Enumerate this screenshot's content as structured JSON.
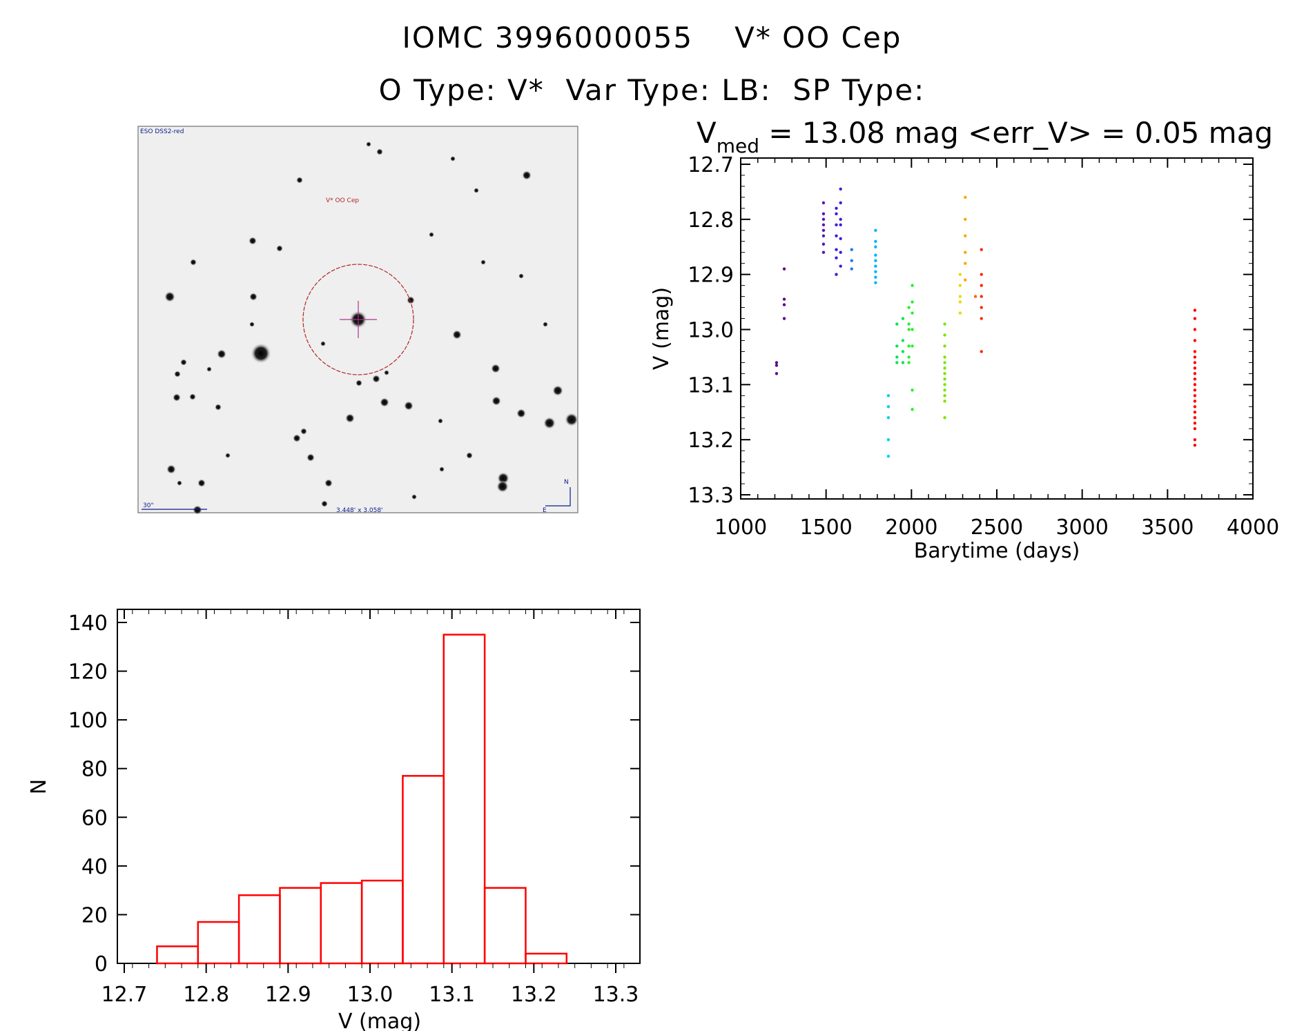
{
  "header": {
    "line1_id": "IOMC 3996000055",
    "line1_name": "V* OO Cep",
    "line2": "O Type: V*  Var Type: LB:  SP Type:"
  },
  "finder": {
    "survey_label": "ESO DSS2-red",
    "target_label": "V* OO Cep",
    "scale_label": "30\"",
    "fov_label": "3.448' x 3.058'",
    "north_label": "N",
    "east_label": "E"
  },
  "colors": {
    "histogram": "#ff0000",
    "target_circle": "#b22222"
  },
  "chart_data": [
    {
      "type": "scatter",
      "title_prefix": "V",
      "title_subscript": "med",
      "title_rest": " = 13.08 mag <err_V> = 0.05 mag",
      "xlabel": "Barytime (days)",
      "ylabel": "V (mag)",
      "xlim": [
        1000,
        4000
      ],
      "ylim": [
        13.3,
        12.7
      ],
      "xticks": [
        1000,
        1500,
        2000,
        2500,
        3000,
        3500,
        4000
      ],
      "yticks": [
        12.7,
        12.8,
        12.9,
        13.0,
        13.1,
        13.2,
        13.3
      ],
      "ytick_labels": [
        "12.7",
        "12.8",
        "12.9",
        "13.0",
        "13.1",
        "13.2",
        "13.3"
      ],
      "groups": [
        {
          "x": 1210,
          "color": "#5a0a8c",
          "values": [
            13.06,
            13.065,
            13.08
          ]
        },
        {
          "x": 1255,
          "color": "#5a0a8c",
          "values": [
            12.89,
            12.945,
            12.955,
            12.98
          ]
        },
        {
          "x": 1485,
          "color": "#5a14b4",
          "values": [
            12.77,
            12.79,
            12.8,
            12.81,
            12.82,
            12.83,
            12.845,
            12.86
          ]
        },
        {
          "x": 1560,
          "color": "#3c1edc",
          "values": [
            12.78,
            12.79,
            12.81,
            12.83,
            12.855,
            12.87,
            12.9
          ]
        },
        {
          "x": 1585,
          "color": "#3c1edc",
          "values": [
            12.745,
            12.77,
            12.8,
            12.81,
            12.835,
            12.86,
            12.885
          ]
        },
        {
          "x": 1650,
          "color": "#1e78f0",
          "values": [
            12.855,
            12.875,
            12.89
          ]
        },
        {
          "x": 1790,
          "color": "#00b4ff",
          "values": [
            12.82,
            12.84,
            12.85,
            12.865,
            12.875,
            12.885,
            12.895,
            12.905,
            12.915
          ]
        },
        {
          "x": 1865,
          "color": "#00d2e6",
          "values": [
            13.12,
            13.14,
            13.16,
            13.2,
            13.23
          ]
        },
        {
          "x": 1915,
          "color": "#00e650",
          "values": [
            12.99,
            13.03,
            13.05,
            13.06
          ]
        },
        {
          "x": 1950,
          "color": "#00e650",
          "values": [
            12.98,
            13.02,
            13.04,
            13.06
          ]
        },
        {
          "x": 1985,
          "color": "#28f028",
          "values": [
            12.96,
            12.99,
            13.0,
            13.03,
            13.05,
            13.06
          ]
        },
        {
          "x": 2005,
          "color": "#28f028",
          "values": [
            12.92,
            12.95,
            12.97,
            13.0,
            13.03,
            13.11,
            13.145
          ]
        },
        {
          "x": 2195,
          "color": "#78e600",
          "values": [
            12.99,
            13.01,
            13.03,
            13.05,
            13.06,
            13.07,
            13.08,
            13.09,
            13.1,
            13.11,
            13.12,
            13.13,
            13.16
          ]
        },
        {
          "x": 2285,
          "color": "#e6dc00",
          "values": [
            12.9,
            12.92,
            12.94,
            12.95,
            12.97
          ]
        },
        {
          "x": 2315,
          "color": "#ffa500",
          "values": [
            12.76,
            12.8,
            12.83,
            12.86,
            12.88,
            12.91
          ]
        },
        {
          "x": 2375,
          "color": "#ff6400",
          "values": [
            12.94
          ]
        },
        {
          "x": 2410,
          "color": "#ff2a00",
          "values": [
            12.855,
            12.9,
            12.92,
            12.94,
            12.96,
            12.98,
            13.04
          ]
        },
        {
          "x": 3660,
          "color": "#ff0000",
          "values": [
            12.965,
            12.98,
            13.0,
            13.02,
            13.04,
            13.05,
            13.06,
            13.07,
            13.08,
            13.09,
            13.1,
            13.11,
            13.12,
            13.13,
            13.14,
            13.15,
            13.16,
            13.17,
            13.18,
            13.2,
            13.21
          ]
        }
      ]
    },
    {
      "type": "histogram",
      "xlabel": "V (mag)",
      "ylabel": "N",
      "xlim": [
        12.69,
        13.33
      ],
      "ylim": [
        0,
        140
      ],
      "xticks": [
        12.7,
        12.8,
        12.9,
        13.0,
        13.1,
        13.2,
        13.3
      ],
      "xtick_labels": [
        "12.7",
        "12.8",
        "12.9",
        "13.0",
        "13.1",
        "13.2",
        "13.3"
      ],
      "yticks": [
        0,
        20,
        40,
        60,
        80,
        100,
        120,
        140
      ],
      "bin_edges": [
        12.74,
        12.79,
        12.84,
        12.89,
        12.94,
        12.99,
        13.04,
        13.09,
        13.14,
        13.19,
        13.24
      ],
      "counts": [
        7,
        17,
        28,
        31,
        33,
        34,
        77,
        135,
        31,
        4
      ]
    }
  ]
}
